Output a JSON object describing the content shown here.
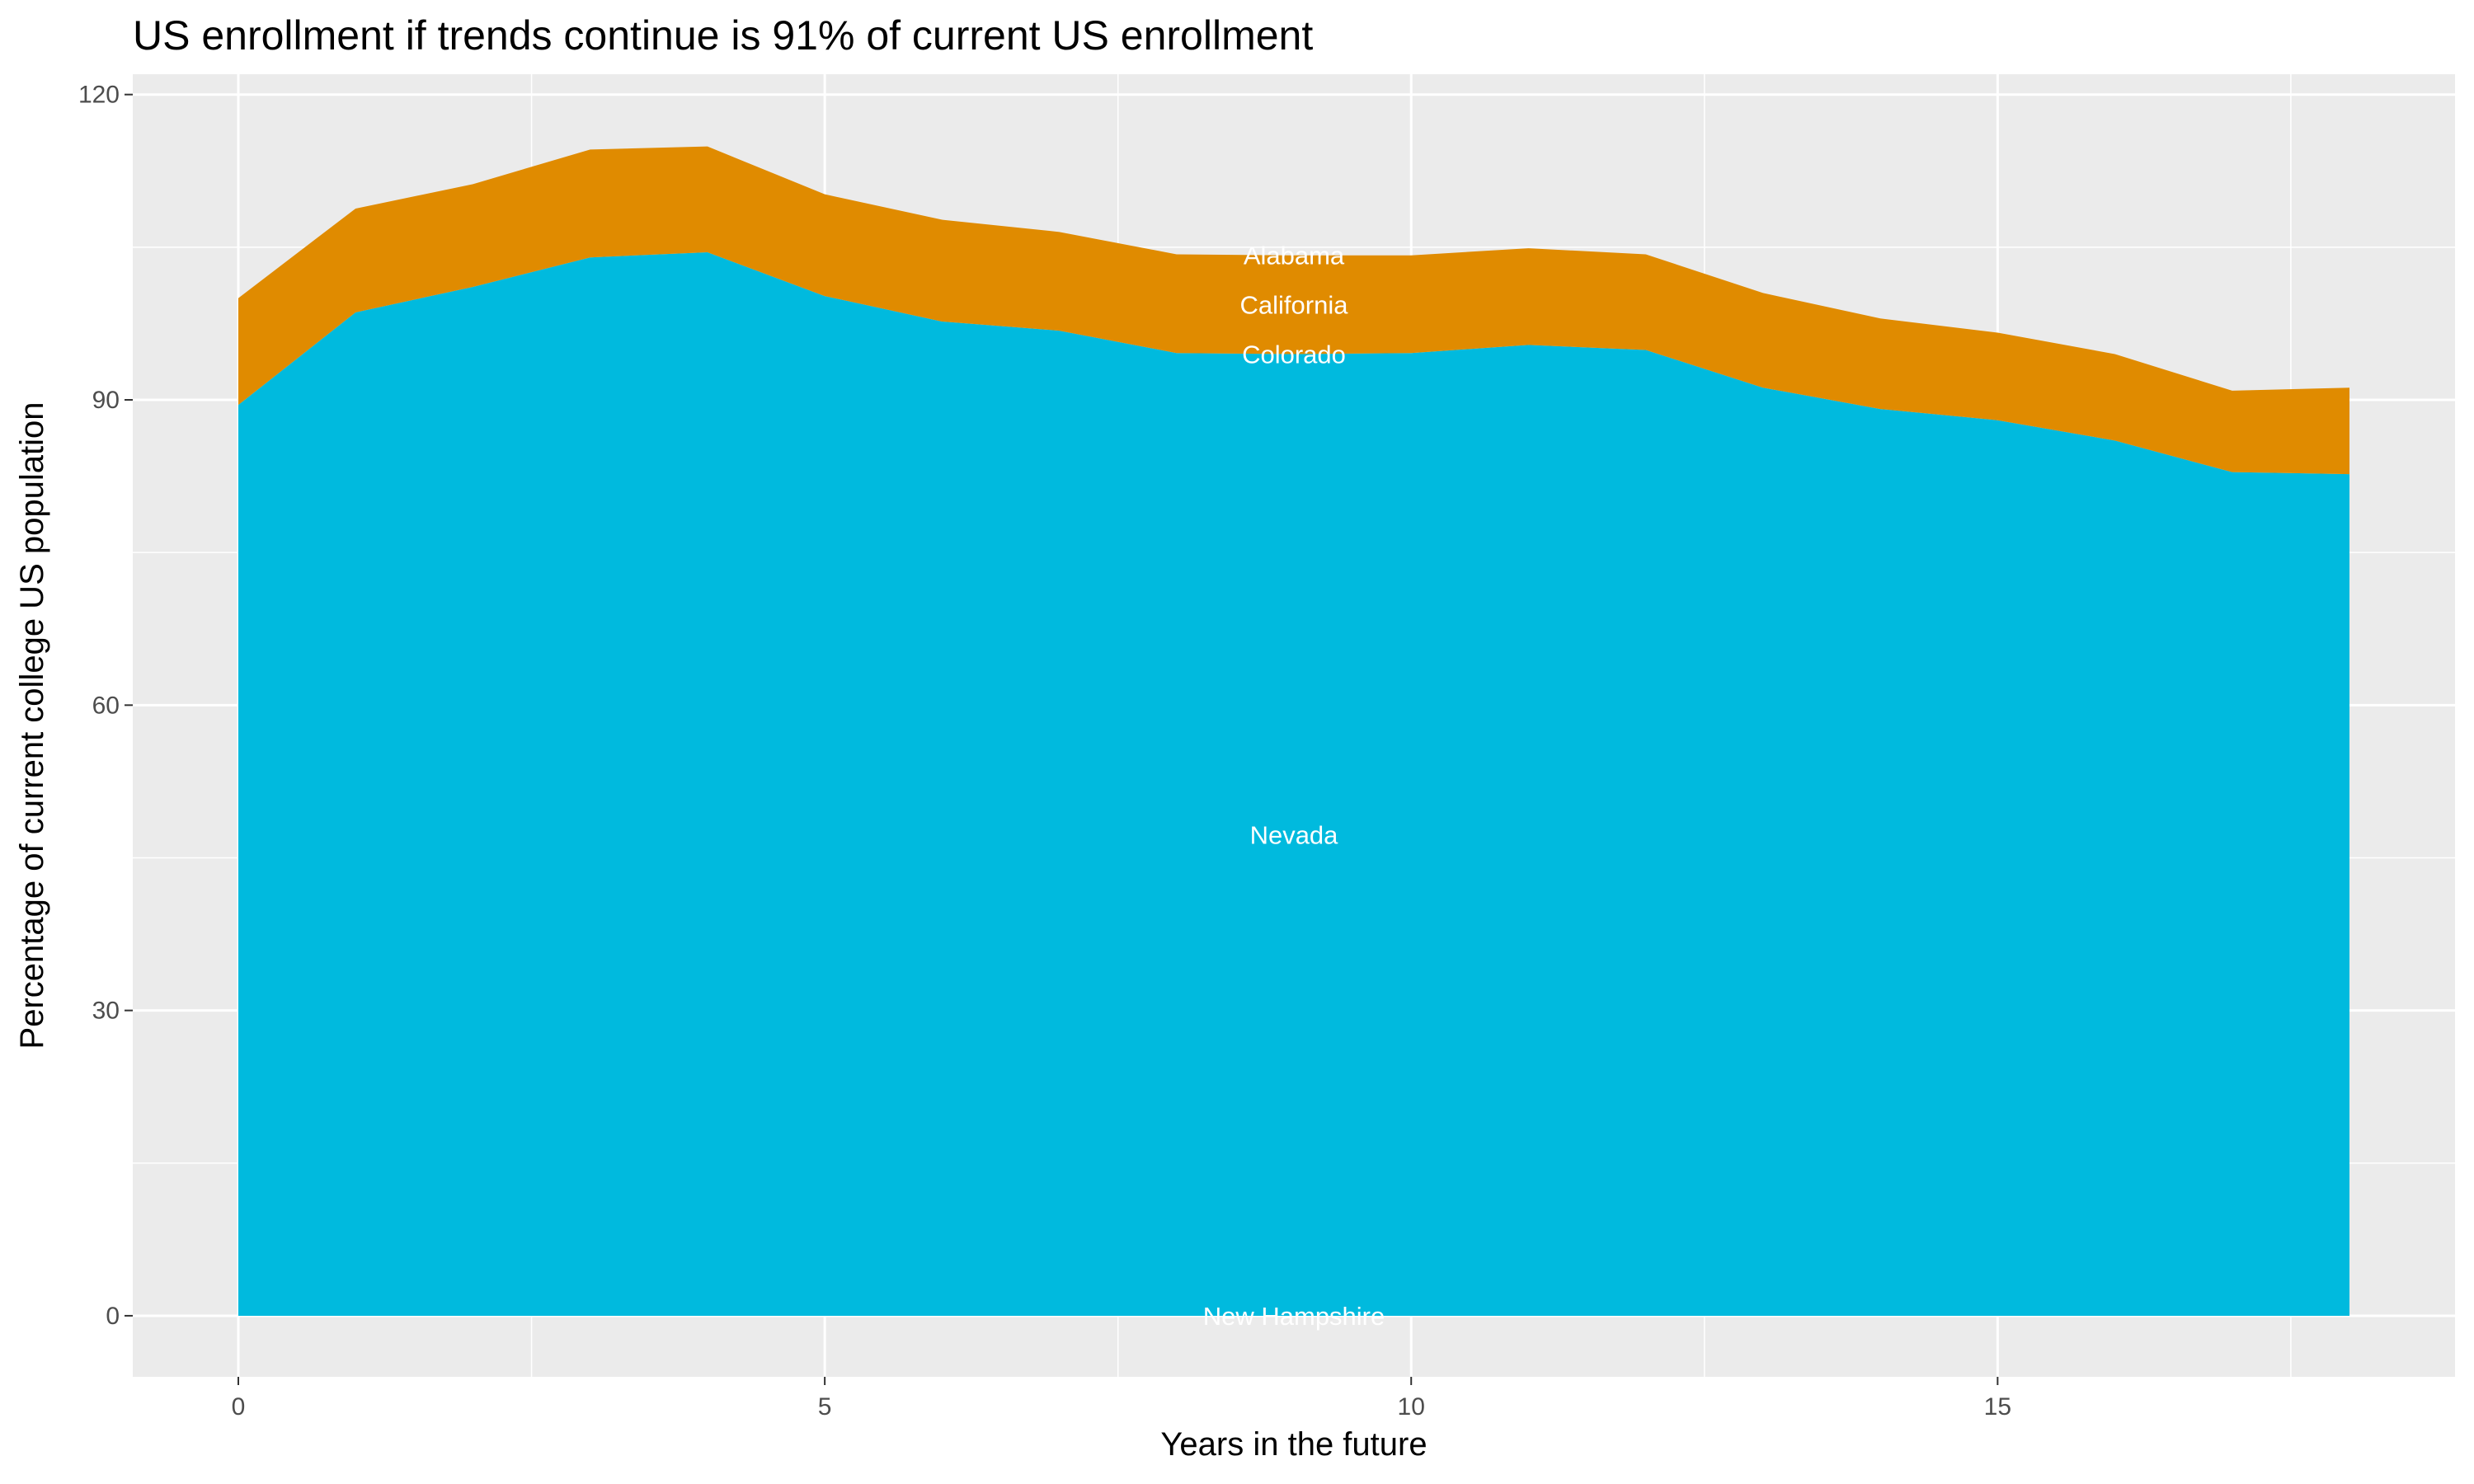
{
  "chart_data": {
    "type": "area",
    "title": "US enrollment if trends continue is 91% of current US enrollment",
    "xlabel": "Years in the future",
    "ylabel": "Percentage of current college US population",
    "xlim": [
      -0.9,
      18.9
    ],
    "ylim": [
      -6,
      122
    ],
    "xticks": [
      0,
      5,
      10,
      15
    ],
    "yticks": [
      0,
      30,
      60,
      90,
      120
    ],
    "grid": true,
    "x": [
      0,
      1,
      2,
      3,
      4,
      5,
      6,
      7,
      8,
      9,
      10,
      11,
      12,
      13,
      14,
      15,
      16,
      17,
      18
    ],
    "series": [
      {
        "name": "New Hampshire",
        "color": "#00BADE",
        "values": [
          0,
          0,
          0,
          0,
          0,
          0,
          0,
          0,
          0,
          0,
          0,
          0,
          0,
          0,
          0,
          0,
          0,
          0,
          0
        ]
      },
      {
        "name": "Nevada",
        "color": "#00BADE",
        "values": [
          89.5,
          98.6,
          101.1,
          104.0,
          104.5,
          100.2,
          97.7,
          96.8,
          94.6,
          94.5,
          94.6,
          95.4,
          94.9,
          91.2,
          89.1,
          88.0,
          86.0,
          82.9,
          82.7
        ]
      },
      {
        "name": "Colorado",
        "color": "#E08B00",
        "values": [
          0,
          0,
          0,
          0,
          0,
          0,
          0,
          0,
          0,
          0,
          0,
          0,
          0,
          0,
          0,
          0,
          0,
          0,
          0
        ]
      },
      {
        "name": "California",
        "color": "#E08B00",
        "values": [
          10.5,
          10.2,
          10.1,
          10.6,
          10.4,
          10.0,
          10.0,
          9.7,
          9.7,
          9.7,
          9.6,
          9.5,
          9.4,
          9.3,
          8.9,
          8.6,
          8.5,
          8.0,
          8.5
        ]
      },
      {
        "name": "Alabama",
        "color": "#E08B00",
        "values": [
          0,
          0,
          0,
          0,
          0,
          0,
          0,
          0,
          0,
          0,
          0,
          0,
          0,
          0,
          0,
          0,
          0,
          0,
          0
        ]
      }
    ],
    "label_x": 9
  }
}
